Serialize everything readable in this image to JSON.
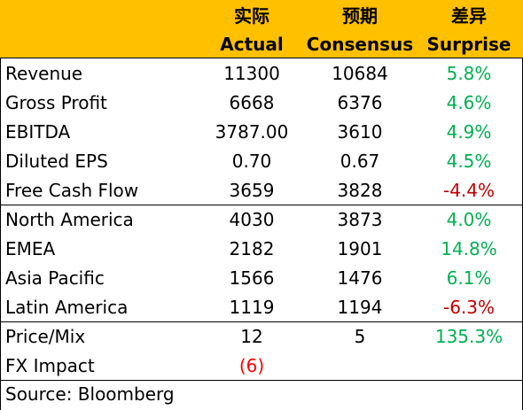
{
  "header": {
    "actual_zh": "实际",
    "actual_en": "Actual",
    "consensus_zh": "预期",
    "consensus_en": "Consensus",
    "surprise_zh": "差异",
    "surprise_en": "Surprise"
  },
  "colors": {
    "header_bg": "#ffc000",
    "positive": "#00b050",
    "negative": "#c00000",
    "highlight_negative": "#ff0000"
  },
  "rows": [
    {
      "label": "Revenue",
      "actual": "11300",
      "consensus": "10684",
      "surprise": "5.8%"
    },
    {
      "label": "Gross Profit",
      "actual": "6668",
      "consensus": "6376",
      "surprise": "4.6%"
    },
    {
      "label": "EBITDA",
      "actual": "3787.00",
      "consensus": "3610",
      "surprise": "4.9%"
    },
    {
      "label": "Diluted EPS",
      "actual": "0.70",
      "consensus": "0.67",
      "surprise": "4.5%"
    },
    {
      "label": "Free Cash Flow",
      "actual": "3659",
      "consensus": "3828",
      "surprise": "-4.4%"
    },
    {
      "label": "North America",
      "actual": "4030",
      "consensus": "3873",
      "surprise": "4.0%"
    },
    {
      "label": "EMEA",
      "actual": "2182",
      "consensus": "1901",
      "surprise": "14.8%"
    },
    {
      "label": "Asia Pacific",
      "actual": "1566",
      "consensus": "1476",
      "surprise": "6.1%"
    },
    {
      "label": "Latin America",
      "actual": "1119",
      "consensus": "1194",
      "surprise": "-6.3%"
    },
    {
      "label": "Price/Mix",
      "actual": "12",
      "consensus": "5",
      "surprise": "135.3%"
    },
    {
      "label": "FX Impact",
      "actual": "(6)",
      "consensus": "",
      "surprise": ""
    }
  ],
  "source": "Source: Bloomberg"
}
